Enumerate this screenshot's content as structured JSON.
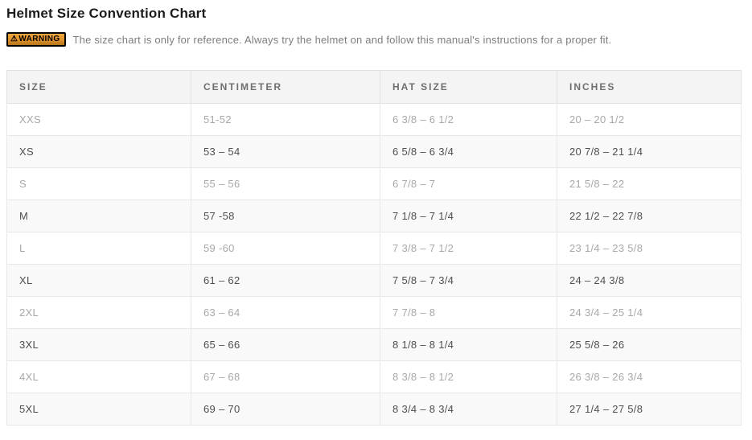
{
  "page_title": "Helmet Size Convention Chart",
  "warning": {
    "icon_glyph": "⚠",
    "badge_label": "WARNING",
    "text": "The size chart is only for reference. Always try the helmet on and follow this manual's instructions for a proper fit."
  },
  "chart_data": {
    "type": "table",
    "title": "Helmet Size Convention Chart",
    "columns": [
      "SIZE",
      "CENTIMETER",
      "HAT SIZE",
      "INCHES"
    ],
    "rows": [
      {
        "size": "XXS",
        "centimeter": "51-52",
        "hat_size": "6 3/8 – 6 1/2",
        "inches": "20 – 20 1/2"
      },
      {
        "size": "XS",
        "centimeter": "53 – 54",
        "hat_size": "6 5/8 – 6 3/4",
        "inches": "20 7/8 – 21 1/4"
      },
      {
        "size": "S",
        "centimeter": "55 – 56",
        "hat_size": "6 7/8 – 7",
        "inches": "21 5/8 – 22"
      },
      {
        "size": "M",
        "centimeter": "57 -58",
        "hat_size": "7 1/8 – 7 1/4",
        "inches": "22 1/2 – 22 7/8"
      },
      {
        "size": "L",
        "centimeter": "59 -60",
        "hat_size": "7 3/8 – 7 1/2",
        "inches": "23 1/4 – 23 5/8"
      },
      {
        "size": "XL",
        "centimeter": "61 – 62",
        "hat_size": "7 5/8 – 7 3/4",
        "inches": "24 – 24 3/8"
      },
      {
        "size": "2XL",
        "centimeter": "63 – 64",
        "hat_size": "7 7/8 – 8",
        "inches": "24 3/4 – 25 1/4"
      },
      {
        "size": "3XL",
        "centimeter": "65 – 66",
        "hat_size": "8 1/8 – 8 1/4",
        "inches": "25 5/8 – 26"
      },
      {
        "size": "4XL",
        "centimeter": "67 – 68",
        "hat_size": "8 3/8 – 8 1/2",
        "inches": "26 3/8 – 26 3/4"
      },
      {
        "size": "5XL",
        "centimeter": "69 – 70",
        "hat_size": "8 3/4 – 8 3/4",
        "inches": "27 1/4 – 27 5/8"
      }
    ]
  },
  "colors": {
    "warning_badge_orange": "#e0912a",
    "header_bg": "#f4f4f4",
    "row_alt_bg": "#f9f9f9",
    "table_border": "#e1e1e1",
    "muted_row_text": "#a8a8a8",
    "dark_row_text": "#4f4f4f",
    "title_text": "#1b1b1b"
  }
}
